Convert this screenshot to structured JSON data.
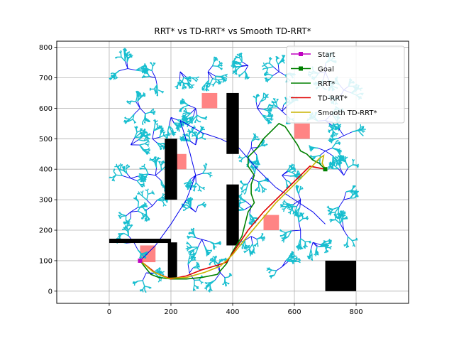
{
  "chart_data": {
    "type": "line",
    "title": "RRT* vs TD-RRT* vs Smooth TD-RRT*",
    "xlabel": "",
    "ylabel": "",
    "xlim": [
      -170,
      970
    ],
    "ylim": [
      -40,
      820
    ],
    "xticks": [
      0,
      200,
      400,
      600,
      800
    ],
    "yticks": [
      0,
      100,
      200,
      300,
      400,
      500,
      600,
      700,
      800
    ],
    "grid": true,
    "legend_position": "upper-right",
    "colors": {
      "start": "#c000c0",
      "goal": "#008000",
      "rrt_star": "#008000",
      "td_rrt_star": "#e00000",
      "smooth": "#c8b400",
      "tree_edges": "#0000ee",
      "tree_nodes": "#17becf",
      "obstacle": "#000000",
      "danger_zone": "#ff6f6f"
    },
    "legend": [
      {
        "label": "Start",
        "kind": "start"
      },
      {
        "label": "Goal",
        "kind": "goal"
      },
      {
        "label": "RRT*",
        "kind": "rrt_star"
      },
      {
        "label": "TD-RRT*",
        "kind": "td_rrt_star"
      },
      {
        "label": "Smooth TD-RRT*",
        "kind": "smooth"
      }
    ],
    "start": [
      100,
      100
    ],
    "goal": [
      700,
      400
    ],
    "obstacles": [
      {
        "x": [
          0,
          200
        ],
        "y": [
          158,
          172
        ]
      },
      {
        "x": [
          190,
          220
        ],
        "y": [
          40,
          160
        ]
      },
      {
        "x": [
          180,
          220
        ],
        "y": [
          300,
          500
        ]
      },
      {
        "x": [
          380,
          420
        ],
        "y": [
          450,
          650
        ]
      },
      {
        "x": [
          380,
          420
        ],
        "y": [
          150,
          350
        ]
      },
      {
        "x": [
          700,
          800
        ],
        "y": [
          0,
          100
        ]
      }
    ],
    "danger_zones": [
      {
        "x": [
          100,
          150
        ],
        "y": [
          95,
          150
        ]
      },
      {
        "x": [
          200,
          250
        ],
        "y": [
          400,
          450
        ]
      },
      {
        "x": [
          300,
          350
        ],
        "y": [
          600,
          650
        ]
      },
      {
        "x": [
          500,
          550
        ],
        "y": [
          200,
          250
        ]
      },
      {
        "x": [
          600,
          650
        ],
        "y": [
          500,
          550
        ]
      }
    ],
    "tree_seeds": [
      [
        60,
        730
      ],
      [
        150,
        700
      ],
      [
        230,
        720
      ],
      [
        320,
        720
      ],
      [
        450,
        740
      ],
      [
        550,
        720
      ],
      [
        700,
        720
      ],
      [
        760,
        660
      ],
      [
        100,
        600
      ],
      [
        200,
        570
      ],
      [
        280,
        600
      ],
      [
        480,
        600
      ],
      [
        560,
        590
      ],
      [
        700,
        560
      ],
      [
        70,
        480
      ],
      [
        140,
        500
      ],
      [
        280,
        480
      ],
      [
        460,
        470
      ],
      [
        700,
        460
      ],
      [
        760,
        510
      ],
      [
        70,
        370
      ],
      [
        150,
        380
      ],
      [
        280,
        380
      ],
      [
        460,
        370
      ],
      [
        560,
        380
      ],
      [
        760,
        380
      ],
      [
        70,
        260
      ],
      [
        140,
        280
      ],
      [
        280,
        260
      ],
      [
        460,
        280
      ],
      [
        620,
        300
      ],
      [
        760,
        300
      ],
      [
        80,
        160
      ],
      [
        300,
        170
      ],
      [
        460,
        180
      ],
      [
        620,
        200
      ],
      [
        760,
        200
      ],
      [
        120,
        60
      ],
      [
        260,
        60
      ],
      [
        360,
        60
      ],
      [
        560,
        80
      ],
      [
        660,
        160
      ]
    ],
    "series": [
      {
        "name": "RRT*",
        "key": "rrt_star",
        "x": [
          100,
          115,
          135,
          160,
          200,
          250,
          300,
          350,
          380,
          400,
          430,
          440,
          450,
          470,
          460,
          460,
          470,
          450,
          450,
          480,
          500,
          530,
          550,
          570,
          590,
          610,
          620,
          640,
          650,
          660,
          680,
          700
        ],
        "y": [
          100,
          80,
          55,
          45,
          40,
          40,
          45,
          55,
          90,
          130,
          180,
          220,
          260,
          290,
          320,
          350,
          380,
          410,
          440,
          470,
          500,
          530,
          550,
          540,
          510,
          480,
          460,
          450,
          440,
          430,
          420,
          400
        ]
      },
      {
        "name": "TD-RRT*",
        "key": "td_rrt_star",
        "x": [
          100,
          150,
          200,
          250,
          300,
          350,
          380,
          410,
          450,
          500,
          550,
          600,
          650,
          700
        ],
        "y": [
          100,
          60,
          40,
          50,
          70,
          85,
          95,
          140,
          200,
          260,
          310,
          360,
          410,
          400
        ]
      },
      {
        "name": "Smooth TD-RRT*",
        "key": "smooth",
        "x": [
          100,
          140,
          190,
          250,
          310,
          360,
          400,
          440,
          490,
          540,
          590,
          640,
          680,
          695,
          690,
          700
        ],
        "y": [
          100,
          65,
          42,
          45,
          62,
          82,
          120,
          170,
          230,
          290,
          340,
          390,
          435,
          445,
          420,
          400
        ]
      }
    ]
  }
}
